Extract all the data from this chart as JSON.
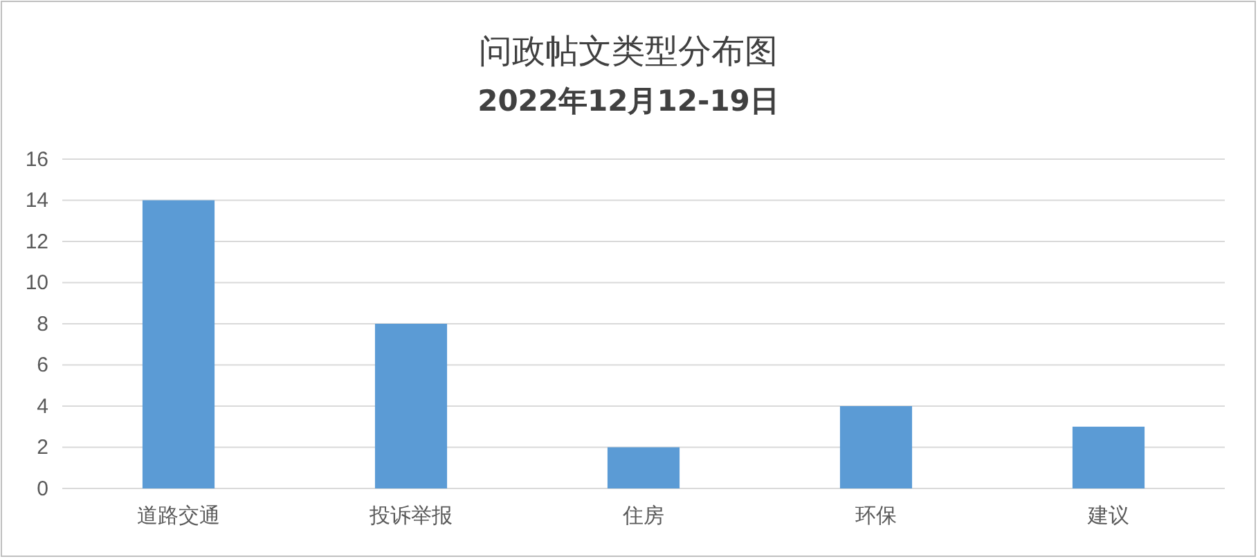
{
  "chart_data": {
    "type": "bar",
    "title": "问政帖文类型分布图",
    "subtitle": "2022年12月12-19日",
    "categories": [
      "道路交通",
      "投诉举报",
      "住房",
      "环保",
      "建议"
    ],
    "values": [
      14,
      8,
      2,
      4,
      3
    ],
    "color": "#5b9bd5",
    "ylim": [
      0,
      16
    ],
    "yticks": [
      0,
      2,
      4,
      6,
      8,
      10,
      12,
      14,
      16
    ],
    "grid": "y",
    "legend": false
  }
}
